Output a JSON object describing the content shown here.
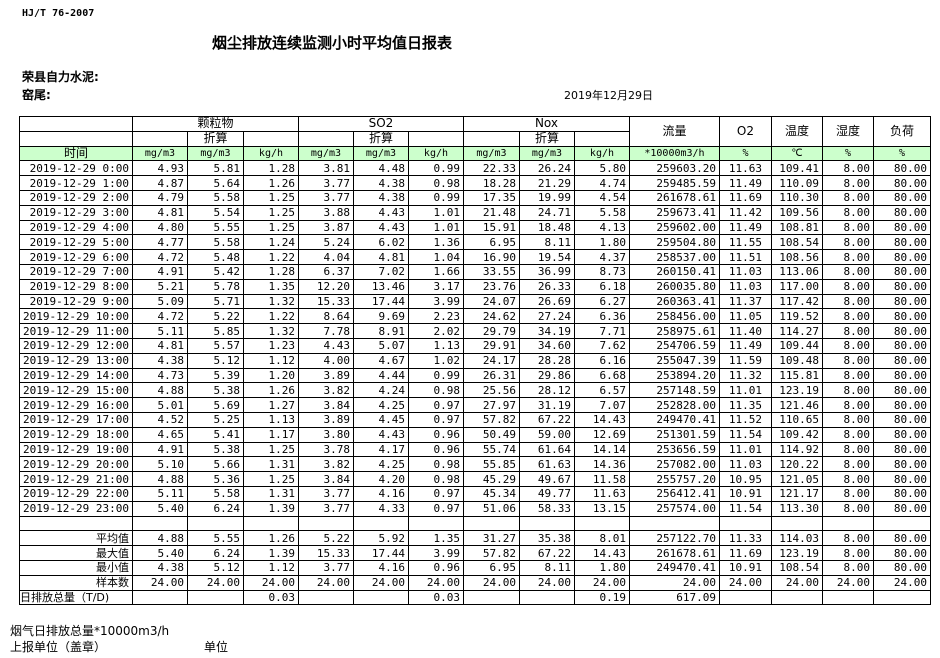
{
  "header": {
    "standard": "HJ/T  76-2007",
    "title": "烟尘排放连续监测小时平均值日报表",
    "company": "荣县自力水泥:",
    "kiln": "窑尾:",
    "date": "2019年12月29日"
  },
  "table": {
    "groups": {
      "particulate": "颗粒物",
      "so2": "SO2",
      "nox": "Nox",
      "flow": "流量",
      "o2": "O2",
      "temp": "温度",
      "humidity": "湿度",
      "load": "负荷"
    },
    "converted_label": "折算",
    "time_label": "时间",
    "units": [
      "mg/m3",
      "mg/m3",
      "kg/h",
      "mg/m3",
      "mg/m3",
      "kg/h",
      "mg/m3",
      "mg/m3",
      "kg/h",
      "*10000m3/h",
      "%",
      "℃",
      "%",
      "%"
    ],
    "rows": [
      {
        "time": "2019-12-29 0:00",
        "v": [
          "4.93",
          "5.81",
          "1.28",
          "3.81",
          "4.48",
          "0.99",
          "22.33",
          "26.24",
          "5.80",
          "259603.20",
          "11.63",
          "109.41",
          "8.00",
          "80.00"
        ]
      },
      {
        "time": "2019-12-29 1:00",
        "v": [
          "4.87",
          "5.64",
          "1.26",
          "3.77",
          "4.38",
          "0.98",
          "18.28",
          "21.29",
          "4.74",
          "259485.59",
          "11.49",
          "110.09",
          "8.00",
          "80.00"
        ]
      },
      {
        "time": "2019-12-29 2:00",
        "v": [
          "4.79",
          "5.58",
          "1.25",
          "3.77",
          "4.38",
          "0.99",
          "17.35",
          "19.99",
          "4.54",
          "261678.61",
          "11.69",
          "110.30",
          "8.00",
          "80.00"
        ]
      },
      {
        "time": "2019-12-29 3:00",
        "v": [
          "4.81",
          "5.54",
          "1.25",
          "3.88",
          "4.43",
          "1.01",
          "21.48",
          "24.71",
          "5.58",
          "259673.41",
          "11.42",
          "109.56",
          "8.00",
          "80.00"
        ]
      },
      {
        "time": "2019-12-29 4:00",
        "v": [
          "4.80",
          "5.55",
          "1.25",
          "3.87",
          "4.43",
          "1.01",
          "15.91",
          "18.48",
          "4.13",
          "259602.00",
          "11.49",
          "108.81",
          "8.00",
          "80.00"
        ]
      },
      {
        "time": "2019-12-29 5:00",
        "v": [
          "4.77",
          "5.58",
          "1.24",
          "5.24",
          "6.02",
          "1.36",
          "6.95",
          "8.11",
          "1.80",
          "259504.80",
          "11.55",
          "108.54",
          "8.00",
          "80.00"
        ]
      },
      {
        "time": "2019-12-29 6:00",
        "v": [
          "4.72",
          "5.48",
          "1.22",
          "4.04",
          "4.81",
          "1.04",
          "16.90",
          "19.54",
          "4.37",
          "258537.00",
          "11.51",
          "108.56",
          "8.00",
          "80.00"
        ]
      },
      {
        "time": "2019-12-29 7:00",
        "v": [
          "4.91",
          "5.42",
          "1.28",
          "6.37",
          "7.02",
          "1.66",
          "33.55",
          "36.99",
          "8.73",
          "260150.41",
          "11.03",
          "113.06",
          "8.00",
          "80.00"
        ]
      },
      {
        "time": "2019-12-29 8:00",
        "v": [
          "5.21",
          "5.78",
          "1.35",
          "12.20",
          "13.46",
          "3.17",
          "23.76",
          "26.33",
          "6.18",
          "260035.80",
          "11.03",
          "117.00",
          "8.00",
          "80.00"
        ]
      },
      {
        "time": "2019-12-29 9:00",
        "v": [
          "5.09",
          "5.71",
          "1.32",
          "15.33",
          "17.44",
          "3.99",
          "24.07",
          "26.69",
          "6.27",
          "260363.41",
          "11.37",
          "117.42",
          "8.00",
          "80.00"
        ]
      },
      {
        "time": "2019-12-29 10:00",
        "v": [
          "4.72",
          "5.22",
          "1.22",
          "8.64",
          "9.69",
          "2.23",
          "24.62",
          "27.24",
          "6.36",
          "258456.00",
          "11.05",
          "119.52",
          "8.00",
          "80.00"
        ]
      },
      {
        "time": "2019-12-29 11:00",
        "v": [
          "5.11",
          "5.85",
          "1.32",
          "7.78",
          "8.91",
          "2.02",
          "29.79",
          "34.19",
          "7.71",
          "258975.61",
          "11.40",
          "114.27",
          "8.00",
          "80.00"
        ]
      },
      {
        "time": "2019-12-29 12:00",
        "v": [
          "4.81",
          "5.57",
          "1.23",
          "4.43",
          "5.07",
          "1.13",
          "29.91",
          "34.60",
          "7.62",
          "254706.59",
          "11.49",
          "109.44",
          "8.00",
          "80.00"
        ]
      },
      {
        "time": "2019-12-29 13:00",
        "v": [
          "4.38",
          "5.12",
          "1.12",
          "4.00",
          "4.67",
          "1.02",
          "24.17",
          "28.28",
          "6.16",
          "255047.39",
          "11.59",
          "109.48",
          "8.00",
          "80.00"
        ]
      },
      {
        "time": "2019-12-29 14:00",
        "v": [
          "4.73",
          "5.39",
          "1.20",
          "3.89",
          "4.44",
          "0.99",
          "26.31",
          "29.86",
          "6.68",
          "253894.20",
          "11.32",
          "115.81",
          "8.00",
          "80.00"
        ]
      },
      {
        "time": "2019-12-29 15:00",
        "v": [
          "4.88",
          "5.38",
          "1.26",
          "3.82",
          "4.24",
          "0.98",
          "25.56",
          "28.12",
          "6.57",
          "257148.59",
          "11.01",
          "123.19",
          "8.00",
          "80.00"
        ]
      },
      {
        "time": "2019-12-29 16:00",
        "v": [
          "5.01",
          "5.69",
          "1.27",
          "3.84",
          "4.25",
          "0.97",
          "27.97",
          "31.19",
          "7.07",
          "252828.00",
          "11.35",
          "121.46",
          "8.00",
          "80.00"
        ]
      },
      {
        "time": "2019-12-29 17:00",
        "v": [
          "4.52",
          "5.25",
          "1.13",
          "3.89",
          "4.45",
          "0.97",
          "57.82",
          "67.22",
          "14.43",
          "249470.41",
          "11.52",
          "110.65",
          "8.00",
          "80.00"
        ]
      },
      {
        "time": "2019-12-29 18:00",
        "v": [
          "4.65",
          "5.41",
          "1.17",
          "3.80",
          "4.43",
          "0.96",
          "50.49",
          "59.00",
          "12.69",
          "251301.59",
          "11.54",
          "109.42",
          "8.00",
          "80.00"
        ]
      },
      {
        "time": "2019-12-29 19:00",
        "v": [
          "4.91",
          "5.38",
          "1.25",
          "3.78",
          "4.17",
          "0.96",
          "55.74",
          "61.64",
          "14.14",
          "253656.59",
          "11.01",
          "114.92",
          "8.00",
          "80.00"
        ]
      },
      {
        "time": "2019-12-29 20:00",
        "v": [
          "5.10",
          "5.66",
          "1.31",
          "3.82",
          "4.25",
          "0.98",
          "55.85",
          "61.63",
          "14.36",
          "257082.00",
          "11.03",
          "120.22",
          "8.00",
          "80.00"
        ]
      },
      {
        "time": "2019-12-29 21:00",
        "v": [
          "4.88",
          "5.36",
          "1.25",
          "3.84",
          "4.20",
          "0.98",
          "45.29",
          "49.67",
          "11.58",
          "255757.20",
          "10.95",
          "121.05",
          "8.00",
          "80.00"
        ]
      },
      {
        "time": "2019-12-29 22:00",
        "v": [
          "5.11",
          "5.58",
          "1.31",
          "3.77",
          "4.16",
          "0.97",
          "45.34",
          "49.77",
          "11.63",
          "256412.41",
          "10.91",
          "121.17",
          "8.00",
          "80.00"
        ]
      },
      {
        "time": "2019-12-29 23:00",
        "v": [
          "5.40",
          "6.24",
          "1.39",
          "3.77",
          "4.33",
          "0.97",
          "51.06",
          "58.33",
          "13.15",
          "257574.00",
          "11.54",
          "113.30",
          "8.00",
          "80.00"
        ]
      }
    ],
    "summary": [
      {
        "label": "平均值",
        "v": [
          "4.88",
          "5.55",
          "1.26",
          "5.22",
          "5.92",
          "1.35",
          "31.27",
          "35.38",
          "8.01",
          "257122.70",
          "11.33",
          "114.03",
          "8.00",
          "80.00"
        ]
      },
      {
        "label": "最大值",
        "v": [
          "5.40",
          "6.24",
          "1.39",
          "15.33",
          "17.44",
          "3.99",
          "57.82",
          "67.22",
          "14.43",
          "261678.61",
          "11.69",
          "123.19",
          "8.00",
          "80.00"
        ]
      },
      {
        "label": "最小值",
        "v": [
          "4.38",
          "5.12",
          "1.12",
          "3.77",
          "4.16",
          "0.96",
          "6.95",
          "8.11",
          "1.80",
          "249470.41",
          "10.91",
          "108.54",
          "8.00",
          "80.00"
        ]
      },
      {
        "label": "样本数",
        "v": [
          "24.00",
          "24.00",
          "24.00",
          "24.00",
          "24.00",
          "24.00",
          "24.00",
          "24.00",
          "24.00",
          "24.00",
          "24.00",
          "24.00",
          "24.00",
          "24.00"
        ]
      },
      {
        "label": "日排放总量（T/D)",
        "v": [
          "",
          "",
          "0.03",
          "",
          "",
          "0.03",
          "",
          "",
          "0.19",
          "617.09",
          "",
          "",
          "",
          ""
        ]
      }
    ]
  },
  "footer": {
    "flue_gas_total": "烟气日排放总量*10000m3/h",
    "reporting_unit": "上报单位（盖章）",
    "unit": "单位"
  },
  "colors": {
    "units_row_bg": "#ccffcc"
  }
}
